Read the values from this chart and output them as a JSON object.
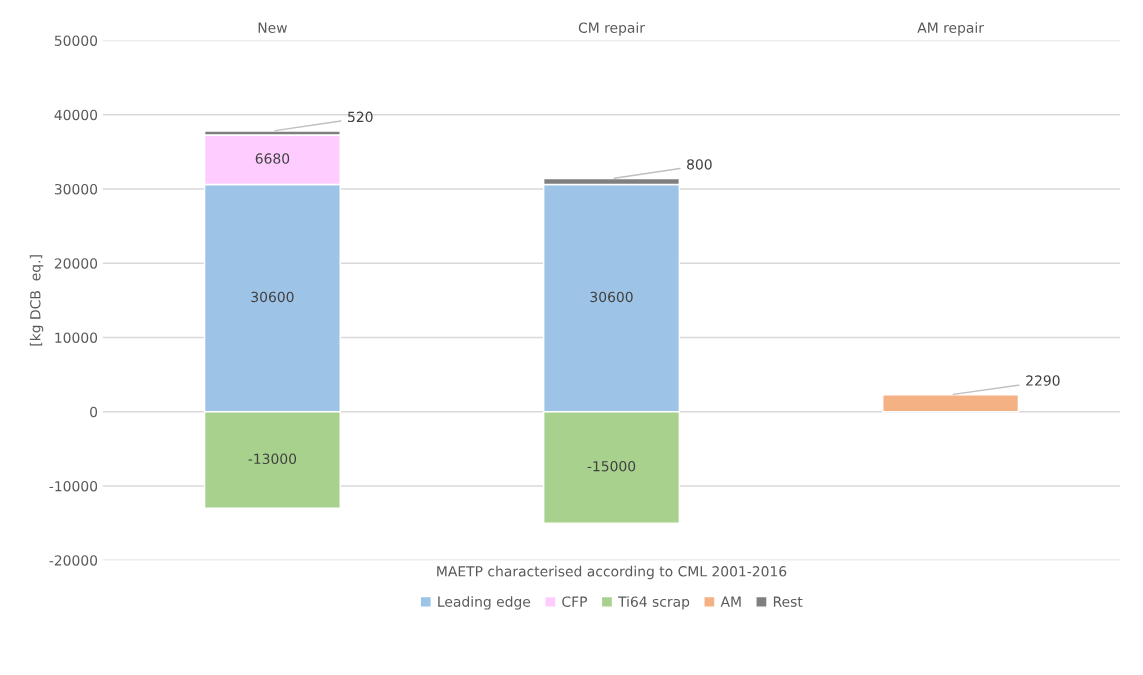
{
  "chart_data": {
    "type": "bar",
    "stacked": true,
    "categories": [
      "New",
      "CM repair",
      "AM repair"
    ],
    "series": [
      {
        "name": "Leading edge",
        "color": "#9dc3e6",
        "values": [
          30600,
          30600,
          null
        ]
      },
      {
        "name": "CFP",
        "color": "#ffccff",
        "values": [
          6680,
          null,
          null
        ]
      },
      {
        "name": "Ti64 scrap",
        "color": "#a9d18e",
        "values": [
          -13000,
          -15000,
          null
        ]
      },
      {
        "name": "AM",
        "color": "#f4b183",
        "values": [
          null,
          null,
          2290
        ]
      },
      {
        "name": "Rest",
        "color": "#7f7f7f",
        "values": [
          520,
          800,
          null
        ]
      }
    ],
    "ylabel": "[kg DCB  eq.]",
    "xlabel": "MAETP characterised according to CML 2001-2016",
    "ylim": [
      -20000,
      50000
    ],
    "yticks": [
      -20000,
      -10000,
      0,
      10000,
      20000,
      30000,
      40000,
      50000
    ],
    "grid": "y",
    "legend": "bottom",
    "data_labels": true
  }
}
